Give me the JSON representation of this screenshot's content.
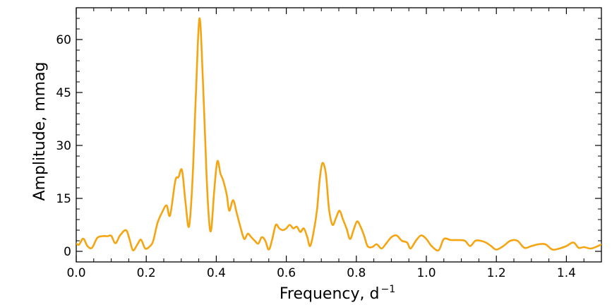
{
  "chart_data": {
    "type": "line",
    "xlabel": "Frequency, d",
    "xlabel_superscript": "−1",
    "ylabel": "Amplitude, mmag",
    "xlim": [
      0.0,
      1.5
    ],
    "ylim": [
      -3,
      69
    ],
    "xticks": [
      0.0,
      0.2,
      0.4,
      0.6,
      0.8,
      1.0,
      1.2,
      1.4
    ],
    "xtick_labels": [
      "0.0",
      "0.2",
      "0.4",
      "0.6",
      "0.8",
      "1.0",
      "1.2",
      "1.4"
    ],
    "x_minor_step": 0.05,
    "yticks": [
      0,
      15,
      30,
      45,
      60
    ],
    "ytick_labels": [
      "0",
      "15",
      "30",
      "45",
      "60"
    ],
    "y_minor_step": 3,
    "grid": false,
    "line_color": "#f5a511",
    "series": [
      {
        "points": [
          [
            0.0,
            2.2
          ],
          [
            0.008,
            1.9
          ],
          [
            0.02,
            3.6
          ],
          [
            0.032,
            1.5
          ],
          [
            0.045,
            1.0
          ],
          [
            0.06,
            3.8
          ],
          [
            0.075,
            4.3
          ],
          [
            0.09,
            4.3
          ],
          [
            0.1,
            4.4
          ],
          [
            0.112,
            2.3
          ],
          [
            0.125,
            4.5
          ],
          [
            0.142,
            6.0
          ],
          [
            0.152,
            3.5
          ],
          [
            0.162,
            0.3
          ],
          [
            0.175,
            2.0
          ],
          [
            0.185,
            3.3
          ],
          [
            0.197,
            0.8
          ],
          [
            0.21,
            1.4
          ],
          [
            0.22,
            3.0
          ],
          [
            0.232,
            8.0
          ],
          [
            0.245,
            11.0
          ],
          [
            0.258,
            13.0
          ],
          [
            0.268,
            10.2
          ],
          [
            0.283,
            20.0
          ],
          [
            0.292,
            21.0
          ],
          [
            0.302,
            23.0
          ],
          [
            0.312,
            14.0
          ],
          [
            0.322,
            7.0
          ],
          [
            0.332,
            20.0
          ],
          [
            0.342,
            45.0
          ],
          [
            0.352,
            66.0
          ],
          [
            0.362,
            48.0
          ],
          [
            0.372,
            22.0
          ],
          [
            0.38,
            8.0
          ],
          [
            0.386,
            6.5
          ],
          [
            0.394,
            17.0
          ],
          [
            0.403,
            25.5
          ],
          [
            0.412,
            22.0
          ],
          [
            0.42,
            20.0
          ],
          [
            0.43,
            16.0
          ],
          [
            0.437,
            11.5
          ],
          [
            0.448,
            14.5
          ],
          [
            0.458,
            11.0
          ],
          [
            0.47,
            6.5
          ],
          [
            0.48,
            3.5
          ],
          [
            0.49,
            5.0
          ],
          [
            0.5,
            4.0
          ],
          [
            0.51,
            3.0
          ],
          [
            0.52,
            2.2
          ],
          [
            0.53,
            4.0
          ],
          [
            0.54,
            3.0
          ],
          [
            0.55,
            0.5
          ],
          [
            0.56,
            3.5
          ],
          [
            0.57,
            7.5
          ],
          [
            0.58,
            6.5
          ],
          [
            0.59,
            6.0
          ],
          [
            0.6,
            6.5
          ],
          [
            0.61,
            7.5
          ],
          [
            0.62,
            6.5
          ],
          [
            0.63,
            7.0
          ],
          [
            0.64,
            5.5
          ],
          [
            0.65,
            6.5
          ],
          [
            0.66,
            4.0
          ],
          [
            0.668,
            1.5
          ],
          [
            0.678,
            5.5
          ],
          [
            0.688,
            12.0
          ],
          [
            0.695,
            20.0
          ],
          [
            0.703,
            25.0
          ],
          [
            0.713,
            22.0
          ],
          [
            0.722,
            12.0
          ],
          [
            0.732,
            7.5
          ],
          [
            0.742,
            9.5
          ],
          [
            0.752,
            11.5
          ],
          [
            0.762,
            9.0
          ],
          [
            0.772,
            6.5
          ],
          [
            0.782,
            3.5
          ],
          [
            0.792,
            6.0
          ],
          [
            0.802,
            8.5
          ],
          [
            0.812,
            7.0
          ],
          [
            0.822,
            4.5
          ],
          [
            0.832,
            1.5
          ],
          [
            0.845,
            1.2
          ],
          [
            0.858,
            2.0
          ],
          [
            0.872,
            0.8
          ],
          [
            0.885,
            2.2
          ],
          [
            0.9,
            4.0
          ],
          [
            0.915,
            4.5
          ],
          [
            0.93,
            3.0
          ],
          [
            0.945,
            2.5
          ],
          [
            0.955,
            0.8
          ],
          [
            0.97,
            3.0
          ],
          [
            0.985,
            4.5
          ],
          [
            1.0,
            3.5
          ],
          [
            1.015,
            1.5
          ],
          [
            1.035,
            0.3
          ],
          [
            1.05,
            3.5
          ],
          [
            1.07,
            3.2
          ],
          [
            1.09,
            3.2
          ],
          [
            1.11,
            3.0
          ],
          [
            1.125,
            1.5
          ],
          [
            1.14,
            3.0
          ],
          [
            1.155,
            3.0
          ],
          [
            1.17,
            2.5
          ],
          [
            1.185,
            1.5
          ],
          [
            1.2,
            0.5
          ],
          [
            1.22,
            1.5
          ],
          [
            1.24,
            3.0
          ],
          [
            1.26,
            3.0
          ],
          [
            1.28,
            1.0
          ],
          [
            1.3,
            1.5
          ],
          [
            1.32,
            2.0
          ],
          [
            1.34,
            2.0
          ],
          [
            1.36,
            0.5
          ],
          [
            1.38,
            0.8
          ],
          [
            1.4,
            1.5
          ],
          [
            1.42,
            2.5
          ],
          [
            1.435,
            1.0
          ],
          [
            1.45,
            1.2
          ],
          [
            1.47,
            0.8
          ],
          [
            1.49,
            1.5
          ],
          [
            1.5,
            2.0
          ]
        ]
      }
    ]
  }
}
